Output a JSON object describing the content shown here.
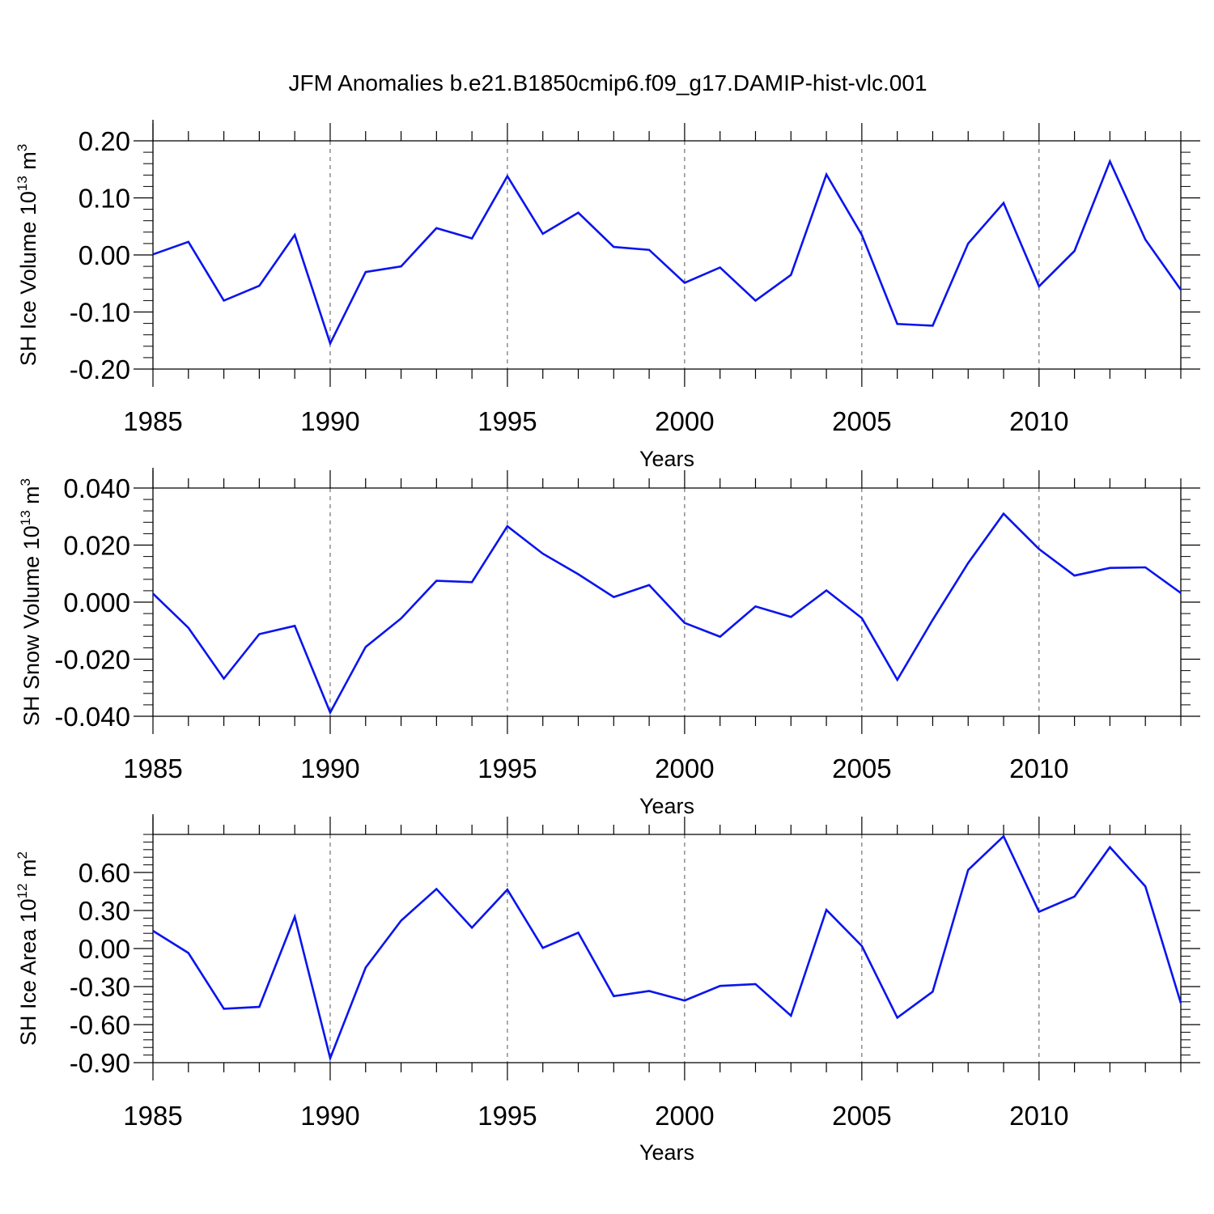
{
  "figure_title": "JFM Anomalies b.e21.B1850cmip6.f09_g17.DAMIP-hist-vlc.001",
  "colors": {
    "line": "#0a14ee",
    "axes": "#000000",
    "grid": "#555555"
  },
  "chart_data": [
    {
      "type": "line",
      "name": "sh-ice-volume",
      "title": "JFM Anomalies b.e21.B1850cmip6.f09_g17.DAMIP-hist-vlc.001",
      "ylabel": {
        "base": "SH Ice Volume 10",
        "exp": "13",
        "unit": " m",
        "unit_exp": "3"
      },
      "xlabel": "Years",
      "xlim": [
        1985,
        2014
      ],
      "ylim": [
        -0.2,
        0.2
      ],
      "xticks": [
        1985,
        1990,
        1995,
        2000,
        2005,
        2010
      ],
      "xtick_labels": [
        "1985",
        "1990",
        "1995",
        "2000",
        "2005",
        "2010"
      ],
      "yticks": [
        -0.2,
        -0.1,
        0.0,
        0.1,
        0.2
      ],
      "ytick_labels": [
        "-0.20",
        "-0.10",
        "0.00",
        "0.10",
        "0.20"
      ],
      "grid": "vertical-dashed",
      "x": [
        1985,
        1986,
        1987,
        1988,
        1989,
        1990,
        1991,
        1992,
        1993,
        1994,
        1995,
        1996,
        1997,
        1998,
        1999,
        2000,
        2001,
        2002,
        2003,
        2004,
        2005,
        2006,
        2007,
        2008,
        2009,
        2010,
        2011,
        2012,
        2013,
        2014
      ],
      "values": [
        0.001,
        0.023,
        -0.08,
        -0.054,
        0.035,
        -0.155,
        -0.03,
        -0.02,
        0.047,
        0.029,
        0.138,
        0.037,
        0.074,
        0.014,
        0.009,
        -0.049,
        -0.022,
        -0.08,
        -0.035,
        0.141,
        0.035,
        -0.121,
        -0.124,
        0.02,
        0.091,
        -0.055,
        0.007,
        0.164,
        0.027,
        -0.061
      ]
    },
    {
      "type": "line",
      "name": "sh-snow-volume",
      "ylabel": {
        "base": "SH Snow Volume 10",
        "exp": "13",
        "unit": " m",
        "unit_exp": "3"
      },
      "xlabel": "Years",
      "xlim": [
        1985,
        2014
      ],
      "ylim": [
        -0.04,
        0.04
      ],
      "xticks": [
        1985,
        1990,
        1995,
        2000,
        2005,
        2010
      ],
      "xtick_labels": [
        "1985",
        "1990",
        "1995",
        "2000",
        "2005",
        "2010"
      ],
      "yticks": [
        -0.04,
        -0.02,
        0.0,
        0.02,
        0.04
      ],
      "ytick_labels": [
        "-0.040",
        "-0.020",
        "0.000",
        "0.020",
        "0.040"
      ],
      "grid": "vertical-dashed",
      "x": [
        1985,
        1986,
        1987,
        1988,
        1989,
        1990,
        1991,
        1992,
        1993,
        1994,
        1995,
        1996,
        1997,
        1998,
        1999,
        2000,
        2001,
        2002,
        2003,
        2004,
        2005,
        2006,
        2007,
        2008,
        2009,
        2010,
        2011,
        2012,
        2013,
        2014
      ],
      "values": [
        0.003,
        -0.009,
        -0.0268,
        -0.0112,
        -0.0083,
        -0.0387,
        -0.0157,
        -0.0057,
        0.0075,
        0.007,
        0.0266,
        0.017,
        0.0098,
        0.0018,
        0.006,
        -0.0073,
        -0.0121,
        -0.0015,
        -0.0052,
        0.0041,
        -0.0056,
        -0.0272,
        -0.0062,
        0.0137,
        0.031,
        0.0186,
        0.0093,
        0.012,
        0.0122,
        0.0032
      ]
    },
    {
      "type": "line",
      "name": "sh-ice-area",
      "ylabel": {
        "base": "SH Ice Area 10",
        "exp": "12",
        "unit": " m",
        "unit_exp": "2"
      },
      "xlabel": "Years",
      "xlim": [
        1985,
        2014
      ],
      "ylim": [
        -0.9,
        0.9
      ],
      "xticks": [
        1985,
        1990,
        1995,
        2000,
        2005,
        2010
      ],
      "xtick_labels": [
        "1985",
        "1990",
        "1995",
        "2000",
        "2005",
        "2010"
      ],
      "yticks": [
        -0.9,
        -0.6,
        -0.3,
        0.0,
        0.3,
        0.6
      ],
      "ytick_labels": [
        "-0.90",
        "-0.60",
        "-0.30",
        "0.00",
        "0.30",
        "0.60"
      ],
      "grid": "vertical-dashed",
      "x": [
        1985,
        1986,
        1987,
        1988,
        1989,
        1990,
        1991,
        1992,
        1993,
        1994,
        1995,
        1996,
        1997,
        1998,
        1999,
        2000,
        2001,
        2002,
        2003,
        2004,
        2005,
        2006,
        2007,
        2008,
        2009,
        2010,
        2011,
        2012,
        2013,
        2014
      ],
      "values": [
        0.14,
        -0.035,
        -0.475,
        -0.46,
        0.25,
        -0.865,
        -0.15,
        0.22,
        0.47,
        0.165,
        0.465,
        0.005,
        0.125,
        -0.375,
        -0.335,
        -0.41,
        -0.295,
        -0.28,
        -0.53,
        0.305,
        0.02,
        -0.545,
        -0.34,
        0.62,
        0.885,
        0.29,
        0.41,
        0.8,
        0.49,
        -0.43
      ]
    }
  ]
}
